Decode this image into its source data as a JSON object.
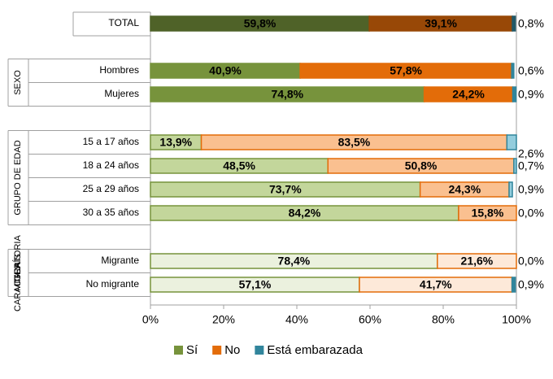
{
  "chart_data": {
    "type": "stacked_bar_horizontal",
    "categories": [
      "TOTAL",
      "Hombres",
      "Mujeres",
      "15 a 17 años",
      "18 a 24 años",
      "25 a 29 años",
      "30 a 35 años",
      "Migrante",
      "No migrante"
    ],
    "groups": [
      {
        "label": [
          "SEXO"
        ],
        "start": 1,
        "end": 2
      },
      {
        "label": [
          "GRUPO DE EDAD"
        ],
        "start": 3,
        "end": 6
      },
      {
        "label": [
          "CARACTERÍS",
          "TICA",
          "MIGRATORIA"
        ],
        "start": 7,
        "end": 8
      }
    ],
    "series": [
      {
        "name": "Sí",
        "color": "#77933c",
        "fills": [
          "#4f6228",
          "#77933c",
          "#77933c",
          "#c3d69b",
          "#c3d69b",
          "#c3d69b",
          "#c3d69b",
          "#ebf1de",
          "#ebf1de"
        ],
        "values": [
          59.8,
          40.9,
          74.8,
          13.9,
          48.5,
          73.7,
          84.2,
          78.4,
          57.1
        ],
        "value_labels": [
          "59,8%",
          "40,9%",
          "74,8%",
          "13,9%",
          "48,5%",
          "73,7%",
          "84,2%",
          "78,4%",
          "57,1%"
        ]
      },
      {
        "name": "No",
        "color": "#e36c09",
        "fills": [
          "#984807",
          "#e36c09",
          "#e36c09",
          "#fac090",
          "#fac090",
          "#fac090",
          "#fac090",
          "#fde9d9",
          "#fde9d9"
        ],
        "values": [
          39.1,
          57.8,
          24.2,
          83.5,
          50.8,
          24.3,
          15.8,
          21.6,
          41.7
        ],
        "value_labels": [
          "39,1%",
          "57,8%",
          "24,2%",
          "83,5%",
          "50,8%",
          "24,3%",
          "15,8%",
          "21,6%",
          "41,7%"
        ]
      },
      {
        "name": "Está embarazada",
        "color": "#31859c",
        "fills": [
          "#215968",
          "#31859c",
          "#31859c",
          "#93cddd",
          "#93cddd",
          "#93cddd",
          "#93cddd",
          "#31859c",
          "#31859c"
        ],
        "values": [
          0.8,
          0.6,
          0.9,
          2.6,
          0.7,
          0.9,
          0.0,
          0.0,
          0.9
        ],
        "value_labels": [
          "0,8%",
          "0,6%",
          "0,9%",
          "2,6%",
          "0,7%",
          "0,9%",
          "0,0%",
          "0,0%",
          "0,9%"
        ]
      }
    ],
    "xlim": [
      0,
      100
    ],
    "xticks": [
      {
        "value": 0,
        "label": "0%"
      },
      {
        "value": 20,
        "label": "20%"
      },
      {
        "value": 40,
        "label": "40%"
      },
      {
        "value": 60,
        "label": "60%"
      },
      {
        "value": 80,
        "label": "80%"
      },
      {
        "value": 100,
        "label": "100%"
      }
    ],
    "legend": "bottom"
  }
}
